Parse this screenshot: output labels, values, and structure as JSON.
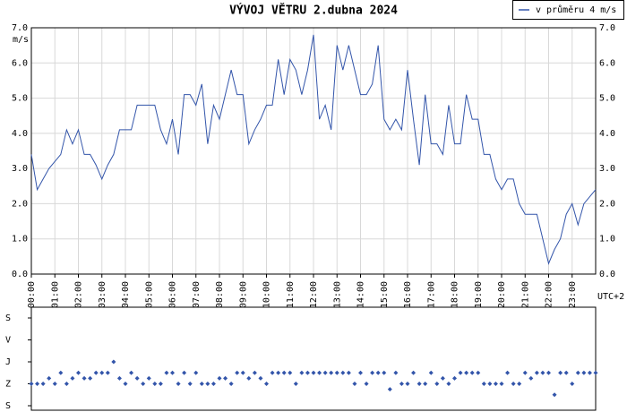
{
  "chart_data": [
    {
      "type": "line",
      "title": "VÝVOJ VĚTRU  2.dubna 2024",
      "ylabel": "m/s",
      "xlabel": "UTC+2",
      "x": [
        0,
        0.25,
        0.5,
        0.75,
        1,
        1.25,
        1.5,
        1.75,
        2,
        2.25,
        2.5,
        2.75,
        3,
        3.25,
        3.5,
        3.75,
        4,
        4.25,
        4.5,
        4.75,
        5,
        5.25,
        5.5,
        5.75,
        6,
        6.25,
        6.5,
        6.75,
        7,
        7.25,
        7.5,
        7.75,
        8,
        8.25,
        8.5,
        8.75,
        9,
        9.25,
        9.5,
        9.75,
        10,
        10.25,
        10.5,
        10.75,
        11,
        11.25,
        11.5,
        11.75,
        12,
        12.25,
        12.5,
        12.75,
        13,
        13.25,
        13.5,
        13.75,
        14,
        14.25,
        14.5,
        14.75,
        15,
        15.25,
        15.5,
        15.75,
        16,
        16.25,
        16.5,
        16.75,
        17,
        17.25,
        17.5,
        17.75,
        18,
        18.25,
        18.5,
        18.75,
        19,
        19.25,
        19.5,
        19.75,
        20,
        20.25,
        20.5,
        20.75,
        21,
        21.25,
        21.5,
        21.75,
        22,
        22.25,
        22.5,
        22.75,
        23,
        23.25,
        23.5,
        23.75,
        24
      ],
      "series": [
        {
          "name": "v průměru 4 m/s",
          "color": "#3355aa",
          "values": [
            3.4,
            2.4,
            2.7,
            3.0,
            3.2,
            3.4,
            4.1,
            3.7,
            4.1,
            3.4,
            3.4,
            3.1,
            2.7,
            3.1,
            3.4,
            4.1,
            4.1,
            4.1,
            4.8,
            4.8,
            4.8,
            4.8,
            4.1,
            3.7,
            4.4,
            3.4,
            5.1,
            5.1,
            4.8,
            5.4,
            3.7,
            4.8,
            4.4,
            5.1,
            5.8,
            5.1,
            5.1,
            3.7,
            4.1,
            4.4,
            4.8,
            4.8,
            6.1,
            5.1,
            6.1,
            5.8,
            5.1,
            5.8,
            6.8,
            4.4,
            4.8,
            4.1,
            6.5,
            5.8,
            6.5,
            5.8,
            5.1,
            5.1,
            5.4,
            6.5,
            4.4,
            4.1,
            4.4,
            4.1,
            5.8,
            4.4,
            3.1,
            5.1,
            3.7,
            3.7,
            3.4,
            4.8,
            3.7,
            3.7,
            5.1,
            4.4,
            4.4,
            3.4,
            3.4,
            2.7,
            2.4,
            2.7,
            2.7,
            2.0,
            1.7,
            1.7,
            1.7,
            1.0,
            0.3,
            0.7,
            1.0,
            1.7,
            2.0,
            1.4,
            2.0,
            2.2,
            2.4
          ]
        }
      ],
      "xlim": [
        0,
        24
      ],
      "xticks": [
        {
          "value": 0,
          "label": "00:00"
        },
        {
          "value": 1,
          "label": "01:00"
        },
        {
          "value": 2,
          "label": "02:00"
        },
        {
          "value": 3,
          "label": "03:00"
        },
        {
          "value": 4,
          "label": "04:00"
        },
        {
          "value": 5,
          "label": "05:00"
        },
        {
          "value": 6,
          "label": "06:00"
        },
        {
          "value": 7,
          "label": "07:00"
        },
        {
          "value": 8,
          "label": "08:00"
        },
        {
          "value": 9,
          "label": "09:00"
        },
        {
          "value": 10,
          "label": "10:00"
        },
        {
          "value": 11,
          "label": "11:00"
        },
        {
          "value": 12,
          "label": "12:00"
        },
        {
          "value": 13,
          "label": "13:00"
        },
        {
          "value": 14,
          "label": "14:00"
        },
        {
          "value": 15,
          "label": "15:00"
        },
        {
          "value": 16,
          "label": "16:00"
        },
        {
          "value": 17,
          "label": "17:00"
        },
        {
          "value": 18,
          "label": "18:00"
        },
        {
          "value": 19,
          "label": "19:00"
        },
        {
          "value": 20,
          "label": "20:00"
        },
        {
          "value": 21,
          "label": "21:00"
        },
        {
          "value": 22,
          "label": "22:00"
        },
        {
          "value": 23,
          "label": "23:00"
        }
      ],
      "ylim": [
        0,
        7
      ],
      "yticks": [
        {
          "value": 0,
          "label": "0.0"
        },
        {
          "value": 1,
          "label": "1.0"
        },
        {
          "value": 2,
          "label": "2.0"
        },
        {
          "value": 3,
          "label": "3.0"
        },
        {
          "value": 4,
          "label": "4.0"
        },
        {
          "value": 5,
          "label": "5.0"
        },
        {
          "value": 6,
          "label": "6.0"
        },
        {
          "value": 7,
          "label": "7.0"
        }
      ],
      "grid": true,
      "legend": "top-right"
    },
    {
      "type": "scatter",
      "x": [
        0,
        0.25,
        0.5,
        0.75,
        1,
        1.25,
        1.5,
        1.75,
        2,
        2.25,
        2.5,
        2.75,
        3,
        3.25,
        3.5,
        3.75,
        4,
        4.25,
        4.5,
        4.75,
        5,
        5.25,
        5.5,
        5.75,
        6,
        6.25,
        6.5,
        6.75,
        7,
        7.25,
        7.5,
        7.75,
        8,
        8.25,
        8.5,
        8.75,
        9,
        9.25,
        9.5,
        9.75,
        10,
        10.25,
        10.5,
        10.75,
        11,
        11.25,
        11.5,
        11.75,
        12,
        12.25,
        12.5,
        12.75,
        13,
        13.25,
        13.5,
        13.75,
        14,
        14.25,
        14.5,
        14.75,
        15,
        15.25,
        15.5,
        15.75,
        16,
        16.25,
        16.5,
        16.75,
        17,
        17.25,
        17.5,
        17.75,
        18,
        18.25,
        18.5,
        18.75,
        19,
        19.25,
        19.5,
        19.75,
        20,
        20.25,
        20.5,
        20.75,
        21,
        21.25,
        21.5,
        21.75,
        22,
        22.25,
        22.5,
        22.75,
        23,
        23.25,
        23.5,
        23.75,
        24
      ],
      "values": [
        270,
        270,
        270,
        247.5,
        270,
        225,
        270,
        247.5,
        225,
        247.5,
        247.5,
        225,
        225,
        225,
        180,
        247.5,
        270,
        225,
        247.5,
        270,
        247.5,
        270,
        270,
        225,
        225,
        270,
        225,
        270,
        225,
        270,
        270,
        270,
        247.5,
        247.5,
        270,
        225,
        225,
        247.5,
        225,
        247.5,
        270,
        225,
        225,
        225,
        225,
        270,
        225,
        225,
        225,
        225,
        225,
        225,
        225,
        225,
        225,
        270,
        225,
        270,
        225,
        225,
        225,
        292.5,
        225,
        270,
        270,
        225,
        270,
        270,
        225,
        270,
        247.5,
        270,
        247.5,
        225,
        225,
        225,
        225,
        270,
        270,
        270,
        270,
        225,
        270,
        270,
        225,
        247.5,
        225,
        225,
        225,
        315,
        225,
        225,
        270,
        225,
        225,
        225,
        225
      ],
      "color": "#3355aa",
      "xlim": [
        0,
        24
      ],
      "ylim": [
        360,
        0
      ],
      "yticks": [
        {
          "value": 0,
          "label": "S"
        },
        {
          "value": 90,
          "label": "V"
        },
        {
          "value": 180,
          "label": "J"
        },
        {
          "value": 270,
          "label": "Z"
        },
        {
          "value": 360,
          "label": "S"
        }
      ]
    }
  ]
}
